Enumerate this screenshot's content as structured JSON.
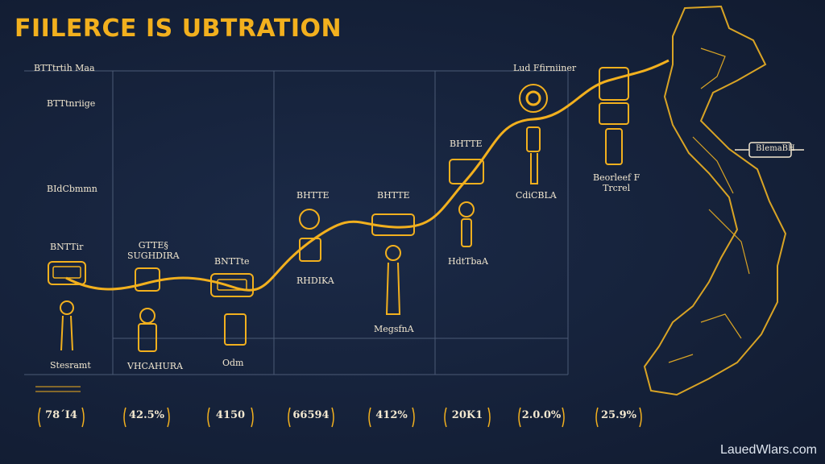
{
  "title": "FIILERCE IS UBTRATION",
  "header_left": "BTTtrtih Maa",
  "header_right": "Lud Ffirniiner",
  "y_labels": [
    "BTTtnriige",
    "BIdCbmmn"
  ],
  "nodes": [
    {
      "top": "BNTTir",
      "bottom": "Stesramt"
    },
    {
      "top": "GTTE§\nSUGHDIRA",
      "bottom": "VHCAHURA"
    },
    {
      "top": "BNTTte",
      "bottom": "Odm"
    },
    {
      "top": "BHTTE",
      "bottom": "RHDIKA"
    },
    {
      "top": "BHTTE",
      "bottom": "MegsfnA"
    },
    {
      "top": "BHTTE",
      "bottom": "HdtTbaA"
    },
    {
      "top": "",
      "bottom": "CdiCBLA"
    },
    {
      "top": "",
      "bottom": "Beorleef F\nTrcrel"
    }
  ],
  "map_label": "BIemaBH",
  "values": [
    "78´I4",
    "42.5%",
    "4150",
    "66594",
    "412%",
    "20K1",
    "2.0.0%",
    "25.9%"
  ],
  "watermark": "LauedWlars.com",
  "colors": {
    "accent": "#f2b01e",
    "text": "#f3e8d0",
    "background": "#14213a"
  }
}
